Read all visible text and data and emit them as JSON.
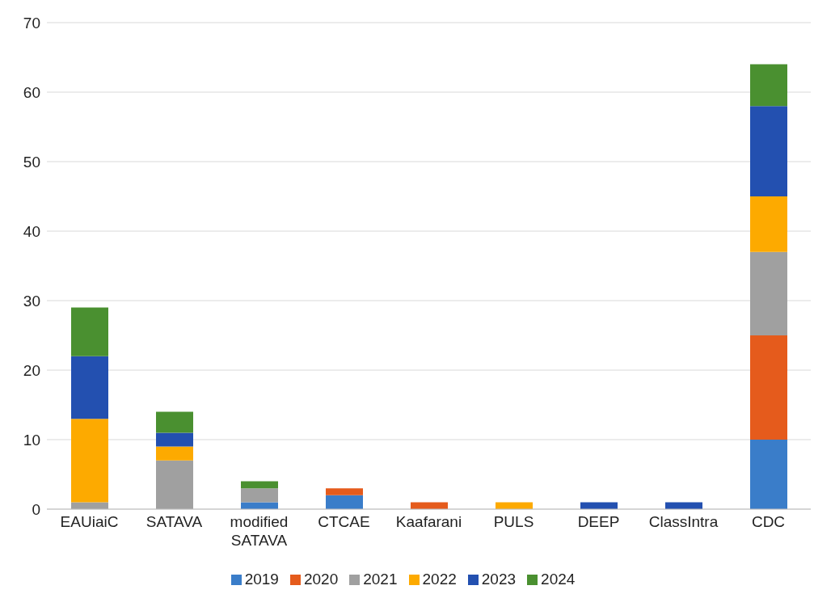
{
  "chart_data": {
    "type": "bar",
    "stacked": true,
    "categories": [
      "EAUiaiC",
      "SATAVA",
      "modified SATAVA",
      "CTCAE",
      "Kaafarani",
      "PULS",
      "DEEP",
      "ClassIntra",
      "CDC"
    ],
    "series": [
      {
        "name": "2019",
        "color": "#3a7dc9",
        "values": [
          0,
          0,
          1,
          2,
          0,
          0,
          0,
          0,
          10
        ]
      },
      {
        "name": "2020",
        "color": "#e55b1c",
        "values": [
          0,
          0,
          0,
          1,
          1,
          0,
          0,
          0,
          15
        ]
      },
      {
        "name": "2021",
        "color": "#a0a0a0",
        "values": [
          1,
          7,
          2,
          0,
          0,
          0,
          0,
          0,
          12
        ]
      },
      {
        "name": "2022",
        "color": "#fdaa00",
        "values": [
          12,
          2,
          0,
          0,
          0,
          1,
          0,
          0,
          8
        ]
      },
      {
        "name": "2023",
        "color": "#2350b0",
        "values": [
          9,
          2,
          0,
          0,
          0,
          0,
          1,
          1,
          13
        ]
      },
      {
        "name": "2024",
        "color": "#4a9030",
        "values": [
          7,
          3,
          1,
          0,
          0,
          0,
          0,
          0,
          6
        ]
      }
    ],
    "ylim": [
      0,
      70
    ],
    "yticks": [
      0,
      10,
      20,
      30,
      40,
      50,
      60,
      70
    ],
    "grid": "y",
    "legend": "bottom"
  }
}
